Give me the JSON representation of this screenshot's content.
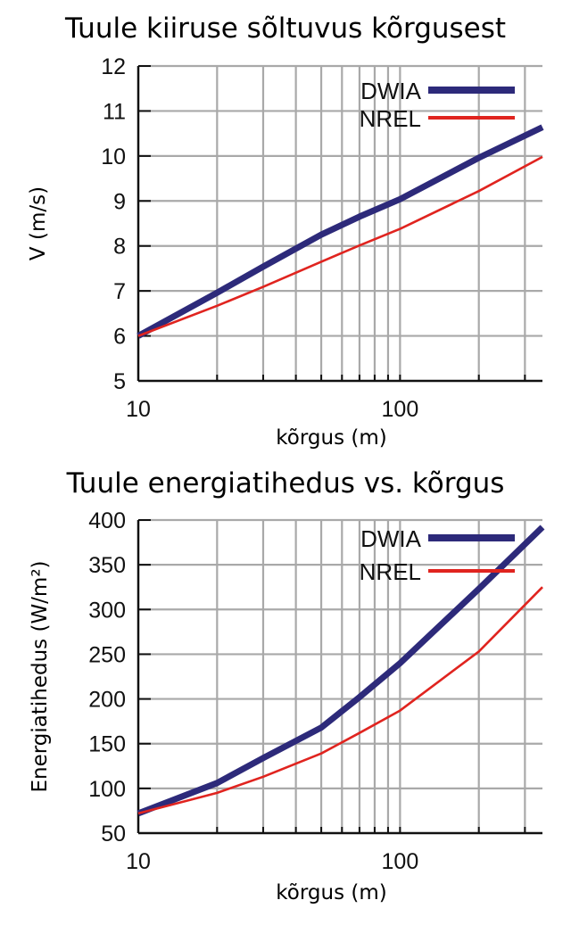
{
  "chart_data": [
    {
      "type": "line",
      "title": "Tuule kiiruse sõltuvus kõrgusest",
      "xlabel": "kõrgus (m)",
      "ylabel": "V (m/s)",
      "xscale": "log",
      "xlim": [
        10,
        350
      ],
      "ylim": [
        5,
        12
      ],
      "xticks": [
        10,
        100
      ],
      "yticks": [
        5,
        6,
        7,
        8,
        9,
        10,
        11,
        12
      ],
      "grid": true,
      "legend": "top-right",
      "series": [
        {
          "name": "DWIA",
          "color": "#2d2a7a",
          "x": [
            10,
            20,
            30,
            50,
            70,
            100,
            200,
            350
          ],
          "y": [
            6.0,
            6.96,
            7.54,
            8.25,
            8.65,
            9.04,
            9.96,
            10.64
          ]
        },
        {
          "name": "NREL",
          "color": "#e0241f",
          "x": [
            10,
            20,
            30,
            50,
            70,
            100,
            200,
            350
          ],
          "y": [
            6.0,
            6.67,
            7.09,
            7.65,
            8.01,
            8.38,
            9.22,
            9.98
          ]
        }
      ]
    },
    {
      "type": "line",
      "title": "Tuule energiatihedus vs. kõrgus",
      "xlabel": "kõrgus (m)",
      "ylabel": "Energiatihedus (W/m²)",
      "xscale": "log",
      "xlim": [
        10,
        350
      ],
      "ylim": [
        50,
        400
      ],
      "xticks": [
        10,
        100
      ],
      "yticks": [
        50,
        100,
        150,
        200,
        250,
        300,
        350,
        400
      ],
      "grid": true,
      "legend": "top-right",
      "series": [
        {
          "name": "DWIA",
          "color": "#2d2a7a",
          "x": [
            10,
            20,
            30,
            50,
            70,
            100,
            200,
            350
          ],
          "y": [
            72,
            106,
            134,
            168,
            202,
            240,
            323,
            392
          ]
        },
        {
          "name": "NREL",
          "color": "#e0241f",
          "x": [
            10,
            20,
            30,
            50,
            70,
            100,
            200,
            350
          ],
          "y": [
            72,
            95,
            113,
            139,
            162,
            187,
            253,
            325
          ]
        }
      ]
    }
  ]
}
